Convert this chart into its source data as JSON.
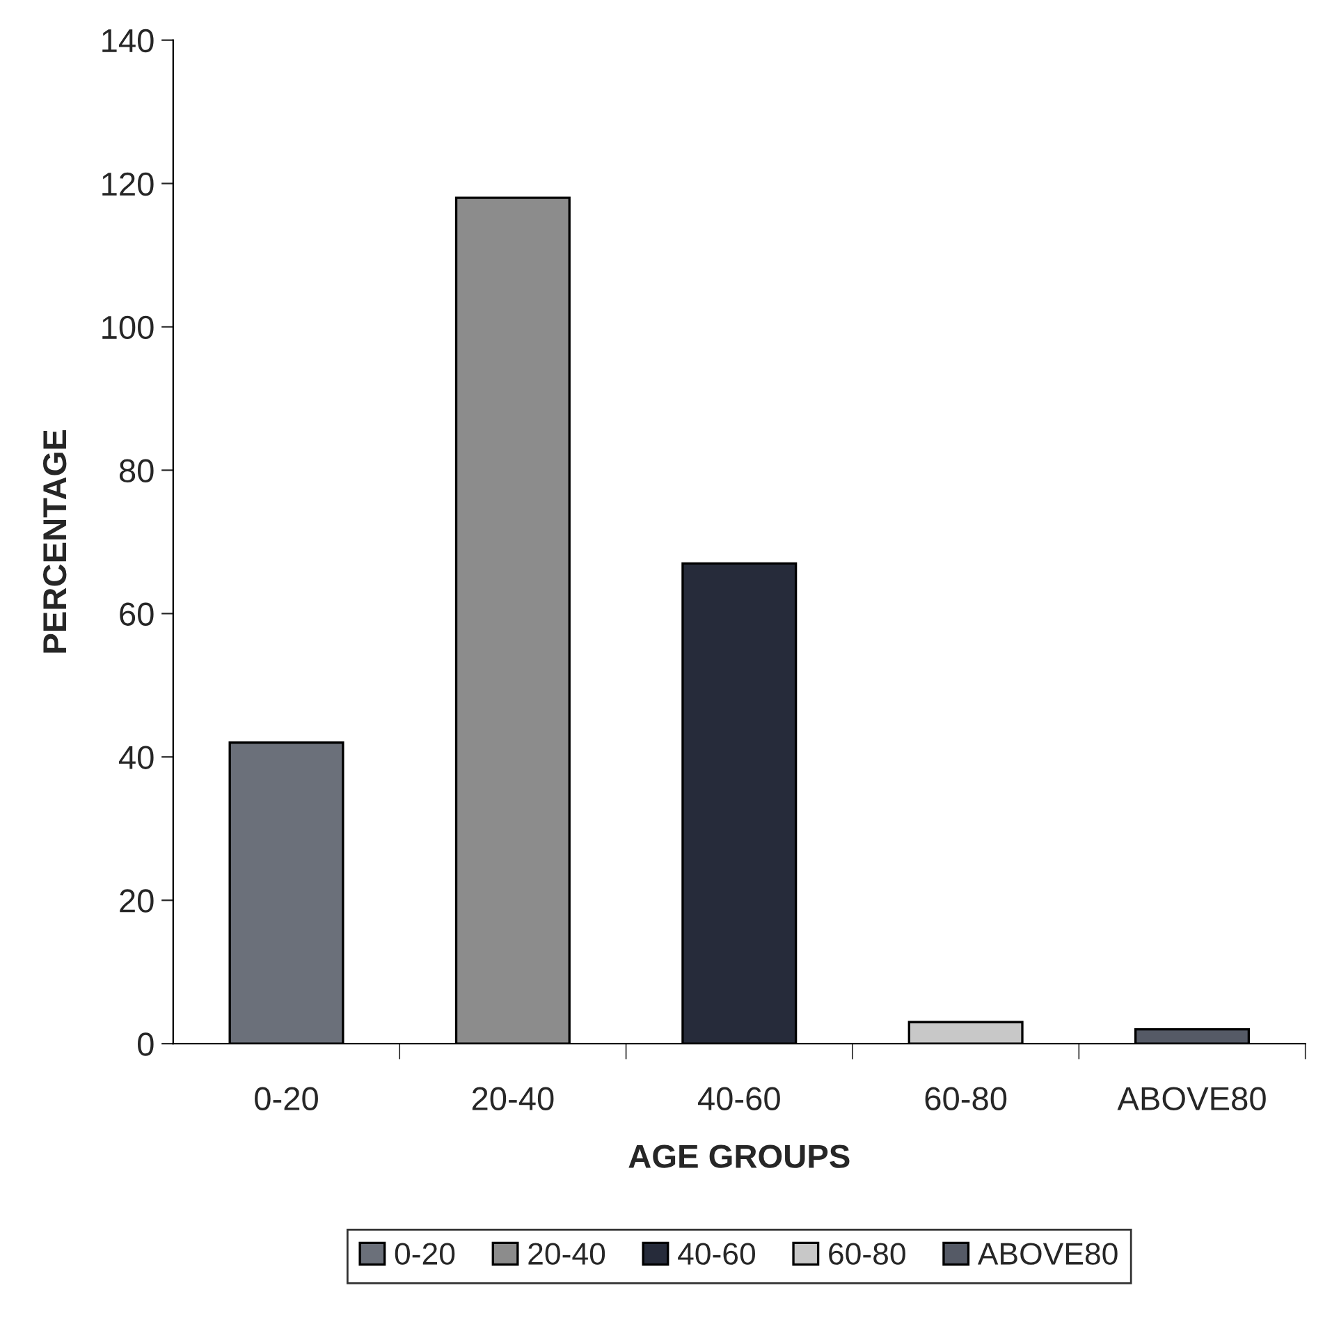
{
  "chart_data": {
    "type": "bar",
    "xlabel": "AGE GROUPS",
    "ylabel": "PERCENTAGE",
    "categories": [
      "0-20",
      "20-40",
      "40-60",
      "60-80",
      "ABOVE80"
    ],
    "series": [
      {
        "name": "0-20",
        "color": "#6b707a",
        "values": [
          42,
          null,
          null,
          null,
          null
        ]
      },
      {
        "name": "20-40",
        "color": "#8c8c8c",
        "values": [
          null,
          118,
          null,
          null,
          null
        ]
      },
      {
        "name": "40-60",
        "color": "#262b3a",
        "values": [
          null,
          null,
          67,
          null,
          null
        ]
      },
      {
        "name": "60-80",
        "color": "#c8c8c8",
        "values": [
          null,
          null,
          null,
          3,
          null
        ]
      },
      {
        "name": "ABOVE80",
        "color": "#555a66",
        "values": [
          null,
          null,
          null,
          null,
          2
        ]
      }
    ],
    "ylim": [
      0,
      140
    ],
    "yticks": [
      0,
      20,
      40,
      60,
      80,
      100,
      120,
      140
    ],
    "grid": false,
    "legend": "bottom"
  }
}
